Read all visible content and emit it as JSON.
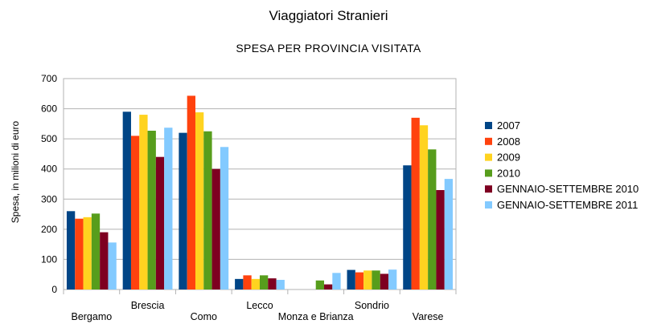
{
  "chart_data": {
    "type": "bar",
    "title": "Viaggiatori Stranieri",
    "subtitle": "SPESA PER PROVINCIA VISITATA",
    "xlabel": "",
    "ylabel": "Spesa, in milioni di euro",
    "ylim": [
      0,
      700
    ],
    "yticks": [
      0,
      100,
      200,
      300,
      400,
      500,
      600,
      700
    ],
    "grid": true,
    "legend_position": "right",
    "categories": [
      "Bergamo",
      "Brescia",
      "Como",
      "Lecco",
      "Monza e Brianza",
      "Sondrio",
      "Varese"
    ],
    "series": [
      {
        "name": "2007",
        "color": "#004586",
        "values": [
          260,
          590,
          520,
          35,
          0,
          65,
          412
        ]
      },
      {
        "name": "2008",
        "color": "#ff420e",
        "values": [
          235,
          510,
          643,
          47,
          0,
          57,
          570
        ]
      },
      {
        "name": "2009",
        "color": "#ffd320",
        "values": [
          240,
          580,
          588,
          35,
          0,
          63,
          545
        ]
      },
      {
        "name": "2010",
        "color": "#579d1c",
        "values": [
          252,
          527,
          525,
          47,
          30,
          63,
          465
        ]
      },
      {
        "name": "GENNAIO-SETTEMBRE 2010",
        "color": "#7e0021",
        "values": [
          190,
          440,
          400,
          37,
          17,
          52,
          330
        ]
      },
      {
        "name": "GENNAIO-SETTEMBRE 2011",
        "color": "#83caff",
        "values": [
          156,
          537,
          473,
          32,
          55,
          66,
          367
        ]
      }
    ]
  }
}
